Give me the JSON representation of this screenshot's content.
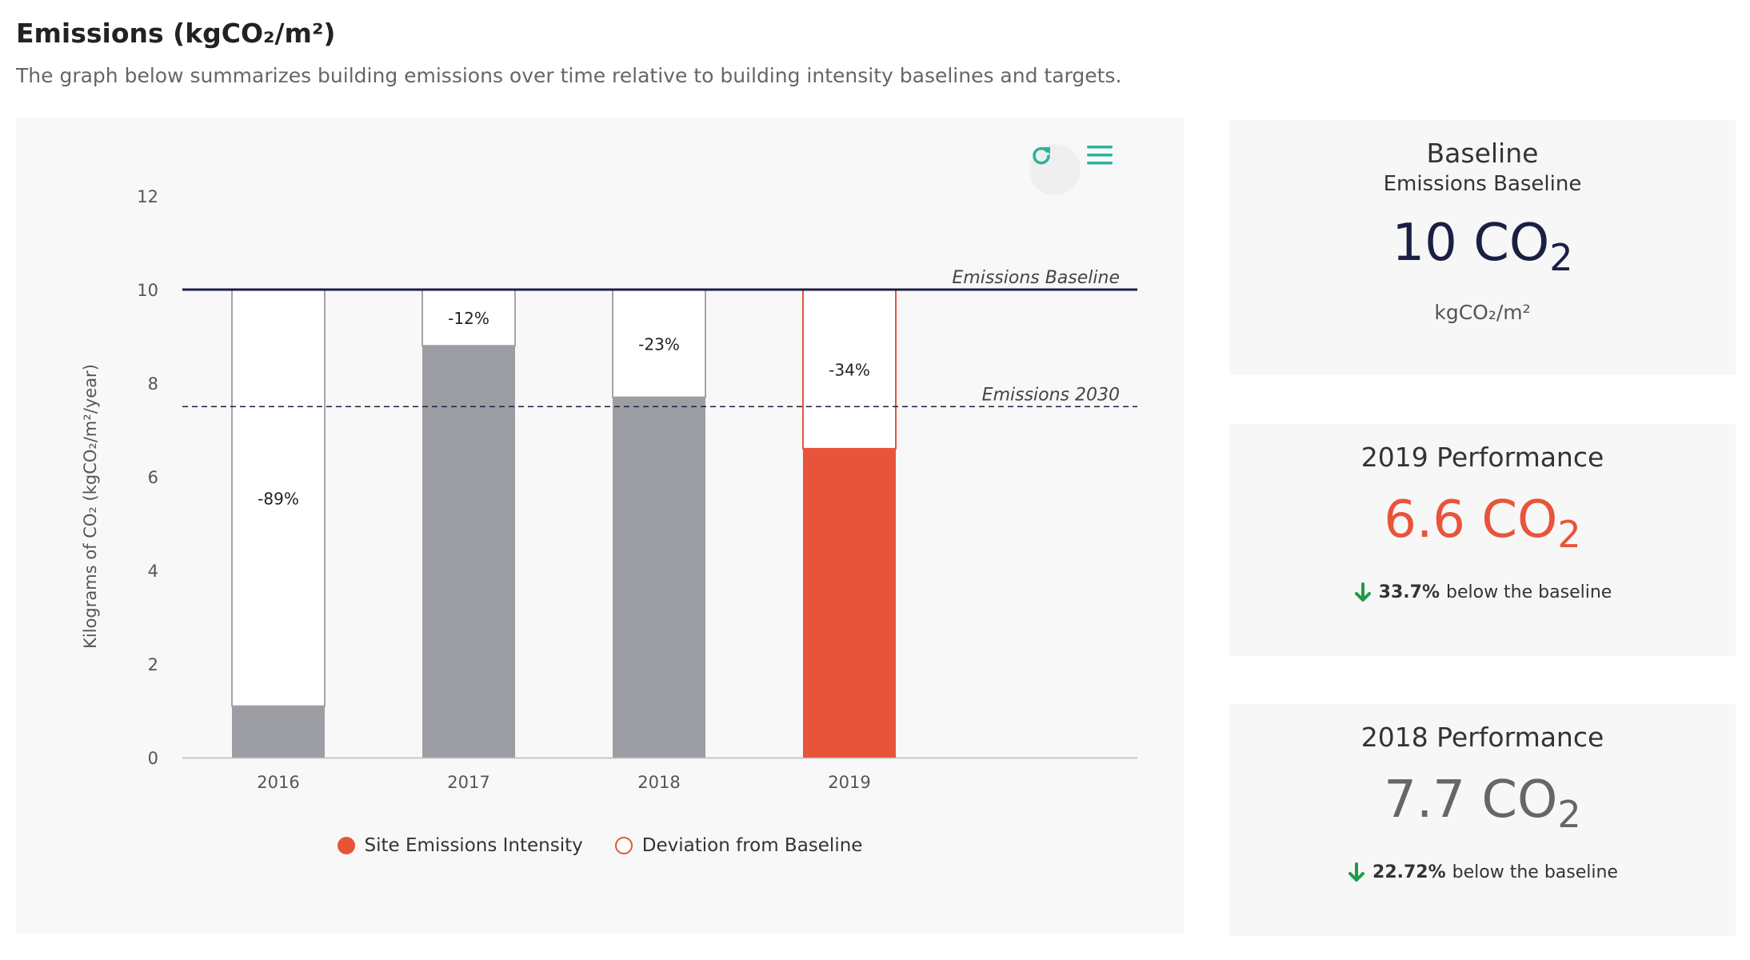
{
  "header": {
    "title": "Emissions (kgCO₂/m²)",
    "subtitle": "The graph below summarizes building emissions over time relative to building intensity baselines and targets."
  },
  "toolbar": {
    "reload_icon": "reload-icon",
    "menu_icon": "hamburger-menu-icon"
  },
  "chart_data": {
    "type": "bar",
    "ylabel": "Kilograms of CO₂ (kgCO₂/m²/year)",
    "ylim": [
      0,
      12
    ],
    "yticks": [
      "0",
      "2",
      "4",
      "6",
      "8",
      "10",
      "12"
    ],
    "categories": [
      "2016",
      "2017",
      "2018",
      "2019"
    ],
    "series": [
      {
        "name": "Site Emissions Intensity",
        "values": [
          1.1,
          8.8,
          7.7,
          6.6
        ],
        "colors": [
          "#9d9ea3",
          "#9d9ea3",
          "#9d9ea3",
          "#e8543a"
        ]
      },
      {
        "name": "Deviation from Baseline",
        "values": [
          8.9,
          1.2,
          2.3,
          3.4
        ],
        "labels": [
          "-89%",
          "-12%",
          "-23%",
          "-34%"
        ]
      }
    ],
    "reference_lines": [
      {
        "label": "Emissions Baseline",
        "value": 10,
        "style": "solid",
        "color": "#1c1f44"
      },
      {
        "label": "Emissions 2030",
        "value": 7.5,
        "style": "dashed",
        "color": "#1c1f44"
      }
    ],
    "legend": {
      "position": "bottom",
      "items": [
        "Site Emissions Intensity",
        "Deviation from Baseline"
      ]
    }
  },
  "cards": [
    {
      "title": "Baseline",
      "subtitle": "Emissions Baseline",
      "value": "10 CO",
      "value_sub": "2",
      "unit": "kgCO₂/m²",
      "color": "#1c1f44"
    },
    {
      "title": "2019 Performance",
      "value": "6.6 CO",
      "value_sub": "2",
      "change_pct": "33.7%",
      "change_text": "below the baseline",
      "color": "#e8543a"
    },
    {
      "title": "2018 Performance",
      "value": "7.7 CO",
      "value_sub": "2",
      "change_pct": "22.72%",
      "change_text": "below the baseline",
      "color": "#666666"
    }
  ],
  "colors": {
    "arrow": "#1e9b4a",
    "accent": "#2bb39a"
  }
}
